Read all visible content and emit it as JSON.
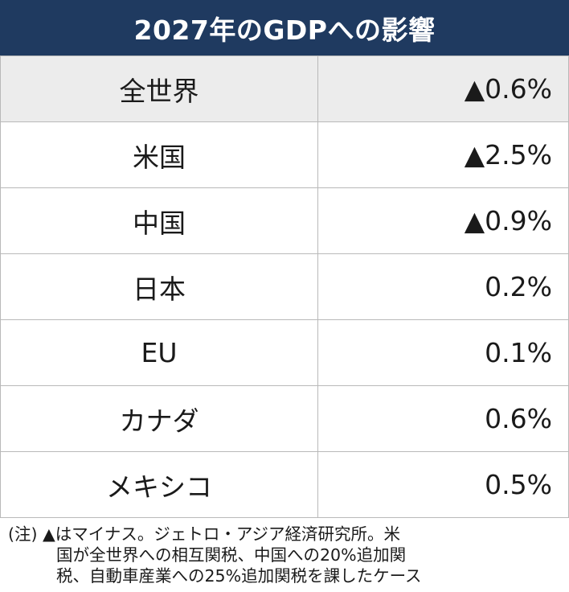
{
  "title": "2027年のGDPへの影響",
  "rows": [
    {
      "name": "全世界",
      "value": "▲0.6%"
    },
    {
      "name": "米国",
      "value": "▲2.5%"
    },
    {
      "name": "中国",
      "value": "▲0.9%"
    },
    {
      "name": "日本",
      "value": "0.2%"
    },
    {
      "name": "EU",
      "value": "0.1%"
    },
    {
      "name": "カナダ",
      "value": "0.6%"
    },
    {
      "name": "メキシコ",
      "value": "0.5%"
    }
  ],
  "note": {
    "line1": "(注) ▲はマイナス。ジェトロ・アジア経済研究所。米",
    "line2": "国が全世界への相互関税、中国への20%追加関",
    "line3": "税、自動車産業への25%追加関税を課したケース"
  },
  "colors": {
    "header_bg": "#1f3a60",
    "first_row_bg": "#ececec",
    "border": "#b9b9b9"
  }
}
